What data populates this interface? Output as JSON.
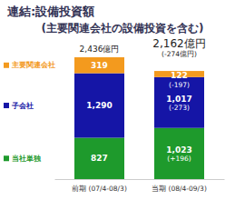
{
  "chart_data": {
    "type": "bar",
    "title": "連結:設備投資額",
    "subtitle": "(主要関連会社の設備投資を含む)",
    "categories": [
      "前期 (07/4-08/3)",
      "当期 (08/4-09/3)"
    ],
    "stacked": true,
    "data_labels": true,
    "tick_labels": "x",
    "legend": "left",
    "series": [
      {
        "name": "当社単独",
        "color": "#1e9a2c",
        "values": [
          827,
          1023
        ],
        "value_labels": [
          "827",
          "1,023"
        ],
        "change_labels": [
          null,
          "(+196)"
        ]
      },
      {
        "name": "子会社",
        "color": "#1515a6",
        "values": [
          1290,
          1017
        ],
        "value_labels": [
          "1,290",
          "1,017"
        ],
        "change_labels": [
          null,
          "(-273)"
        ]
      },
      {
        "name": "主要関連会社",
        "color": "#f39a1e",
        "values": [
          319,
          122
        ],
        "value_labels": [
          "319",
          "122"
        ],
        "change_labels": [
          null,
          "(-197)"
        ]
      }
    ],
    "totals": [
      2436,
      2162
    ],
    "total_labels": [
      "2,436億円",
      "2,162億円"
    ],
    "total_change_labels": [
      null,
      "(-274億円)"
    ]
  }
}
